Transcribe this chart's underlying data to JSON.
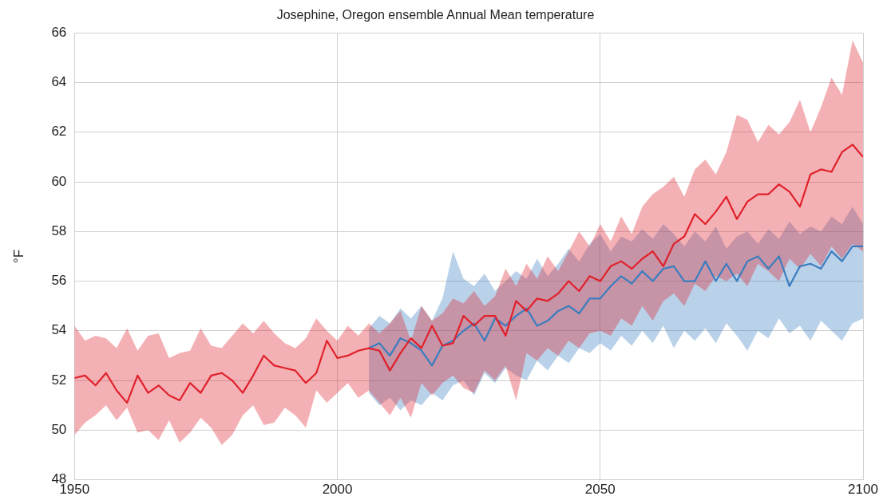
{
  "chart_data": {
    "type": "line",
    "title": "Josephine, Oregon ensemble Annual Mean temperature",
    "ylabel": "°F",
    "xlim": [
      1950,
      2100
    ],
    "xticks": [
      1950,
      2000,
      2050,
      2100
    ],
    "ylim": [
      48,
      66
    ],
    "yticks": [
      48,
      50,
      52,
      54,
      56,
      58,
      60,
      62,
      64,
      66
    ],
    "grid": true,
    "legend": false,
    "marker": "none",
    "line_style": "solid",
    "series": [
      {
        "color": "#e0202a",
        "x": [
          1950,
          1952,
          1954,
          1956,
          1958,
          1960,
          1962,
          1964,
          1966,
          1968,
          1970,
          1972,
          1974,
          1976,
          1978,
          1980,
          1982,
          1984,
          1986,
          1988,
          1990,
          1992,
          1994,
          1996,
          1998,
          2000,
          2002,
          2004,
          2006,
          2008,
          2010,
          2012,
          2014,
          2016,
          2018,
          2020,
          2022,
          2024,
          2026,
          2028,
          2030,
          2032,
          2034,
          2036,
          2038,
          2040,
          2042,
          2044,
          2046,
          2048,
          2050,
          2052,
          2054,
          2056,
          2058,
          2060,
          2062,
          2064,
          2066,
          2068,
          2070,
          2072,
          2074,
          2076,
          2078,
          2080,
          2082,
          2084,
          2086,
          2088,
          2090,
          2092,
          2094,
          2096,
          2098,
          2100
        ],
        "values": [
          52.1,
          52.2,
          51.8,
          52.3,
          51.6,
          51.1,
          52.2,
          51.5,
          51.8,
          51.4,
          51.2,
          51.9,
          51.5,
          52.2,
          52.3,
          52.0,
          51.5,
          52.2,
          53.0,
          52.6,
          52.5,
          52.4,
          51.9,
          52.3,
          53.6,
          52.9,
          53.0,
          53.2,
          53.3,
          53.2,
          52.4,
          53.1,
          53.7,
          53.3,
          54.2,
          53.4,
          53.5,
          54.6,
          54.2,
          54.6,
          54.6,
          53.8,
          55.2,
          54.8,
          55.3,
          55.2,
          55.5,
          56.0,
          55.6,
          56.2,
          56.0,
          56.6,
          56.8,
          56.5,
          56.9,
          57.2,
          56.6,
          57.5,
          57.8,
          58.7,
          58.3,
          58.8,
          59.4,
          58.5,
          59.2,
          59.5,
          59.5,
          59.9,
          59.6,
          59.0,
          60.3,
          60.5,
          60.4,
          61.2,
          61.5,
          61.0
        ],
        "upper": [
          54.2,
          53.6,
          53.8,
          53.7,
          53.3,
          54.1,
          53.2,
          53.8,
          53.9,
          52.9,
          53.1,
          53.2,
          54.1,
          53.4,
          53.3,
          53.8,
          54.3,
          53.9,
          54.4,
          53.9,
          53.5,
          53.3,
          53.7,
          54.5,
          54.0,
          53.6,
          54.2,
          53.8,
          54.3,
          53.9,
          54.3,
          54.8,
          53.6,
          55.0,
          54.4,
          54.7,
          55.3,
          55.1,
          55.6,
          55.0,
          55.4,
          56.5,
          55.8,
          56.7,
          56.1,
          57.0,
          56.4,
          57.2,
          58.0,
          57.4,
          58.3,
          57.6,
          58.6,
          57.9,
          59.0,
          59.5,
          59.8,
          60.2,
          59.4,
          60.5,
          60.9,
          60.3,
          61.2,
          62.7,
          62.5,
          61.6,
          62.3,
          61.9,
          62.4,
          63.3,
          62.0,
          63.0,
          64.2,
          63.5,
          65.7,
          64.8
        ],
        "lower": [
          49.8,
          50.3,
          50.6,
          51.0,
          50.4,
          50.9,
          49.9,
          50.0,
          49.6,
          50.4,
          49.5,
          49.9,
          50.5,
          50.1,
          49.4,
          49.8,
          50.6,
          51.0,
          50.2,
          50.3,
          50.9,
          50.6,
          50.1,
          51.6,
          51.1,
          51.5,
          51.9,
          51.3,
          51.6,
          51.1,
          50.6,
          51.3,
          50.5,
          51.9,
          51.4,
          51.9,
          52.2,
          51.7,
          51.5,
          52.4,
          52.0,
          52.6,
          51.2,
          53.1,
          52.8,
          53.3,
          53.0,
          53.6,
          53.3,
          53.9,
          54.0,
          53.8,
          54.5,
          54.2,
          55.0,
          54.4,
          55.2,
          55.5,
          55.0,
          55.9,
          55.6,
          56.2,
          56.0,
          56.3,
          55.8,
          56.7,
          56.4,
          56.0,
          56.9,
          56.5,
          57.1,
          56.6,
          57.4,
          56.9,
          57.5,
          57.2
        ]
      },
      {
        "color": "#3a7dbf",
        "x": [
          2006,
          2008,
          2010,
          2012,
          2014,
          2016,
          2018,
          2020,
          2022,
          2024,
          2026,
          2028,
          2030,
          2032,
          2034,
          2036,
          2038,
          2040,
          2042,
          2044,
          2046,
          2048,
          2050,
          2052,
          2054,
          2056,
          2058,
          2060,
          2062,
          2064,
          2066,
          2068,
          2070,
          2072,
          2074,
          2076,
          2078,
          2080,
          2082,
          2084,
          2086,
          2088,
          2090,
          2092,
          2094,
          2096,
          2098,
          2100
        ],
        "values": [
          53.3,
          53.5,
          53.0,
          53.7,
          53.5,
          53.2,
          52.6,
          53.4,
          53.6,
          54.0,
          54.3,
          53.6,
          54.5,
          54.2,
          54.6,
          54.9,
          54.2,
          54.4,
          54.8,
          55.0,
          54.7,
          55.3,
          55.3,
          55.8,
          56.2,
          55.9,
          56.4,
          56.0,
          56.5,
          56.6,
          56.0,
          56.0,
          56.8,
          56.0,
          56.7,
          56.0,
          56.8,
          57.0,
          56.5,
          57.0,
          55.8,
          56.6,
          56.7,
          56.5,
          57.2,
          56.8,
          57.4,
          57.4
        ],
        "upper": [
          54.1,
          54.6,
          54.3,
          54.9,
          54.5,
          55.0,
          54.4,
          55.3,
          57.2,
          56.1,
          55.8,
          56.3,
          55.6,
          56.0,
          56.4,
          56.1,
          56.9,
          56.2,
          56.7,
          57.3,
          56.8,
          57.5,
          57.9,
          57.2,
          57.8,
          57.6,
          58.1,
          57.7,
          58.3,
          57.9,
          57.4,
          58.0,
          57.6,
          58.2,
          57.3,
          57.8,
          58.0,
          57.5,
          58.1,
          57.7,
          58.4,
          57.9,
          58.2,
          58.0,
          58.6,
          58.3,
          59.0,
          58.3
        ],
        "lower": [
          51.5,
          51.0,
          51.3,
          50.8,
          51.2,
          51.0,
          51.5,
          51.2,
          51.8,
          52.0,
          51.4,
          52.3,
          51.9,
          52.5,
          52.2,
          52.0,
          52.8,
          52.4,
          53.0,
          52.7,
          53.3,
          53.1,
          53.5,
          53.2,
          53.8,
          53.4,
          54.0,
          53.5,
          54.2,
          53.3,
          54.0,
          53.6,
          54.1,
          53.5,
          54.3,
          53.8,
          53.2,
          54.0,
          53.7,
          54.5,
          53.9,
          54.2,
          53.6,
          54.4,
          54.0,
          53.6,
          54.3,
          54.5
        ]
      }
    ]
  }
}
